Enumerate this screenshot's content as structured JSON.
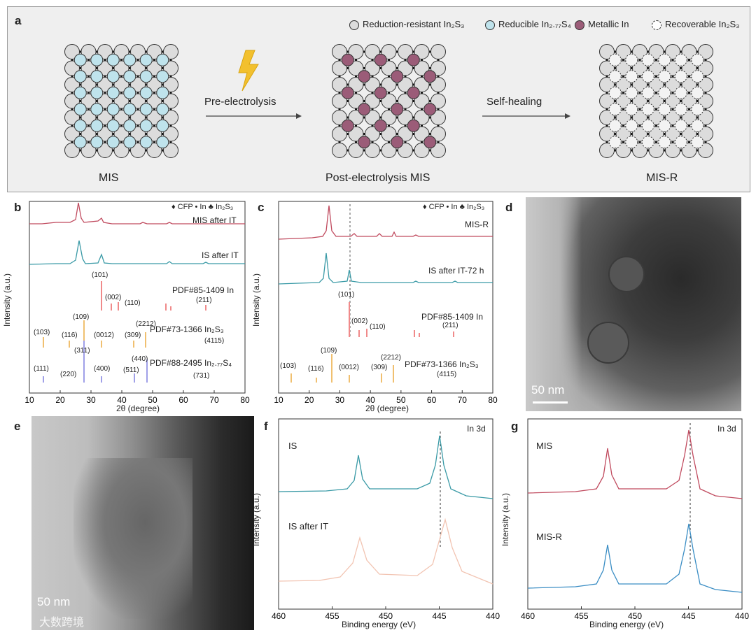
{
  "panel_a": {
    "letter": "a",
    "legend": [
      {
        "label": "Reduction-resistant In₂S₃",
        "color": "#dcdcdc",
        "dashed": false
      },
      {
        "label": "Reducible In₂.₇₇S₄",
        "color": "#bfe3ec",
        "dashed": false
      },
      {
        "label": "Metallic In",
        "color": "#9b5c78",
        "dashed": false
      },
      {
        "label": "Recoverable In₂S₃",
        "color": "#ffffff",
        "dashed": true
      }
    ],
    "arrow1": "Pre-electrolysis",
    "arrow2": "Self-healing",
    "label_left": "MIS",
    "label_mid": "Post-electrolysis MIS",
    "label_right": "MIS-R"
  },
  "panel_b": {
    "letter": "b",
    "legend": "♦ CFP • In ♣ In₂S₃",
    "curve1": "MIS after IT",
    "curve2": "IS after IT",
    "ref1": "PDF#85-1409 In",
    "ref2": "PDF#73-1366 In₂S₃",
    "ref3": "PDF#88-2495 In₂.₇₇S₄",
    "ylabel": "Intensity (a.u.)",
    "xlabel": "2θ (degree)",
    "xticks": [
      "10",
      "20",
      "30",
      "40",
      "50",
      "60",
      "70",
      "80"
    ],
    "hkl_in": [
      "(101)",
      "(002)",
      "(110)",
      "(211)"
    ],
    "hkl_in2s3": [
      "(109)",
      "(103)",
      "(116)",
      "(0012)",
      "(309)",
      "(2212)",
      "(4115)"
    ],
    "hkl_in277": [
      "(311)",
      "(111)",
      "(220)",
      "(400)",
      "(511)",
      "(440)",
      "(731)"
    ]
  },
  "panel_c": {
    "letter": "c",
    "legend": "♦ CFP • In ♣ In₂S₃",
    "curve1": "MIS-R",
    "curve2": "IS after IT-72 h",
    "ref1": "PDF#85-1409 In",
    "ref2": "PDF#73-1366 In₂S₃",
    "ylabel": "Intensity (a.u.)",
    "xlabel": "2θ (degree)",
    "xticks": [
      "10",
      "20",
      "30",
      "40",
      "50",
      "60",
      "70",
      "80"
    ],
    "hkl_in": [
      "(101)",
      "(002)",
      "(110)",
      "(211)"
    ],
    "hkl_in2s3": [
      "(109)",
      "(103)",
      "(116)",
      "(0012)",
      "(309)",
      "(2212)",
      "(4115)"
    ]
  },
  "panel_d": {
    "letter": "d",
    "scale": "50 nm"
  },
  "panel_e": {
    "letter": "e",
    "scale": "50 nm"
  },
  "panel_f": {
    "letter": "f",
    "corner": "In 3d",
    "curve1": "IS",
    "curve2": "IS after IT",
    "ylabel": "Intensity (a.u.)",
    "xlabel": "Binding energy (eV)",
    "xticks": [
      "460",
      "455",
      "450",
      "445",
      "440"
    ],
    "colors": {
      "top": "#3a9aa6",
      "bottom": "#f2c4b2"
    }
  },
  "panel_g": {
    "letter": "g",
    "corner": "In 3d",
    "curve1": "MIS",
    "curve2": "MIS-R",
    "ylabel": "Intensity (a.u.)",
    "xlabel": "Binding energy (eV)",
    "xticks": [
      "460",
      "455",
      "450",
      "445",
      "440"
    ],
    "colors": {
      "top": "#c04a5e",
      "bottom": "#3a8dc4"
    }
  },
  "watermark": "大数跨境"
}
